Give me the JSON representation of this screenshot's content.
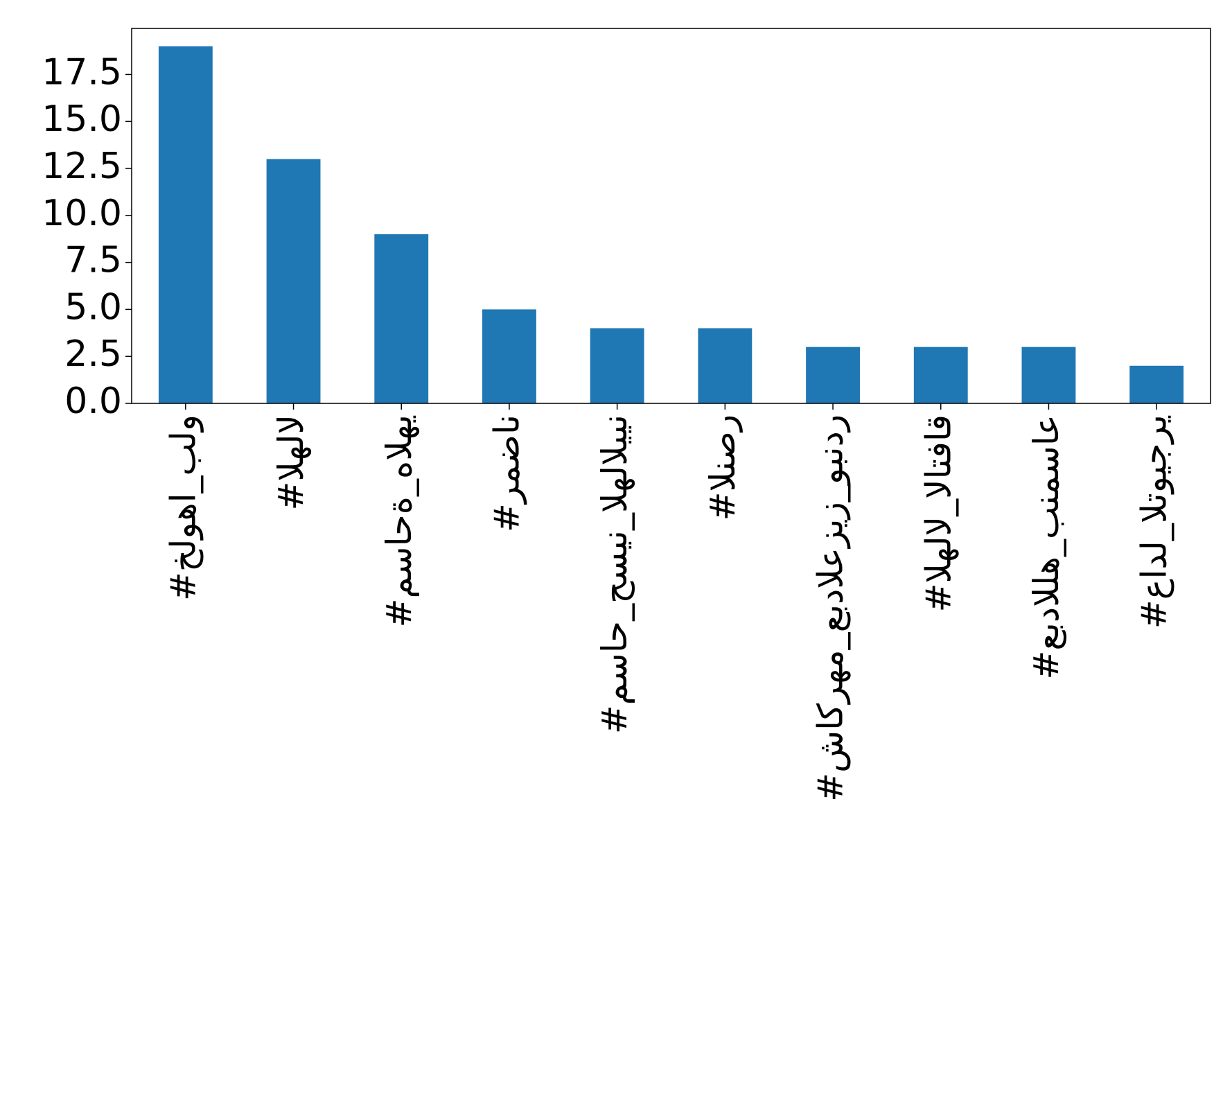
{
  "chart_data": {
    "type": "bar",
    "categories": [
      "#خلوها_بلو",
      "#الهلال",
      "#مساحة_هالهي",
      "#رمضان",
      "#مساح_حسين_الهلاليين",
      "#النصر",
      "#شاكرهم_عبدالعزيز_وبندر",
      "#الهلال_الاتفاق",
      "#عبدالله_بنمساع",
      "#عادل_التويجري"
    ],
    "values": [
      19,
      13,
      9,
      5,
      4,
      4,
      3,
      3,
      3,
      2
    ],
    "color": "#1f77b4",
    "ylim": [
      0,
      19.95
    ],
    "yticks": [
      {
        "value": 0,
        "label": "0.0"
      },
      2.5,
      {
        "value": 5,
        "label": "5.0"
      },
      7.5,
      {
        "value": 10,
        "label": "10.0"
      },
      12.5,
      {
        "value": 15,
        "label": "15.0"
      },
      17.5
    ],
    "grid": false
  }
}
